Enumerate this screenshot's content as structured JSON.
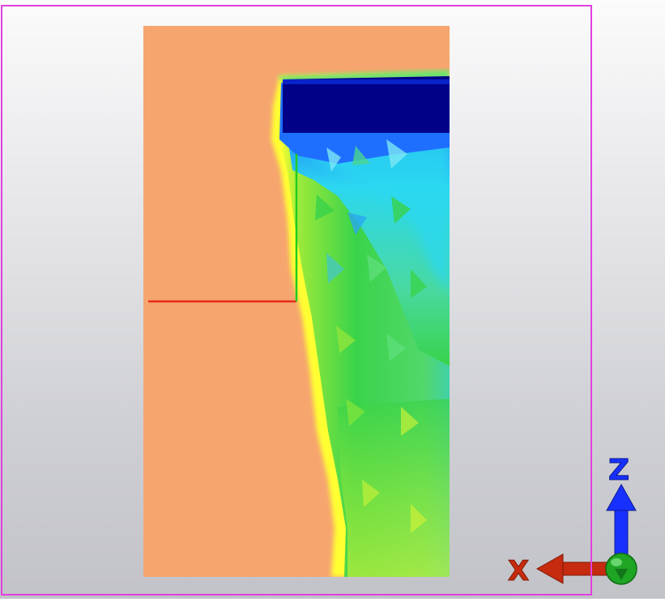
{
  "scene": {
    "frame_color": "#e040e0",
    "background_top": "#fbfbfb",
    "background_bottom": "#c2c3c8",
    "contour_colors": {
      "background": "#f7a46d",
      "dark_blue": "#000088",
      "blue": "#1f6fff",
      "cyan": "#2cd8f0",
      "green": "#39d34a",
      "yellow_green": "#b7ee3a",
      "yellow": "#ffff33"
    },
    "local_axes": {
      "x_color": "#e52a14",
      "z_color": "#20cc20"
    }
  },
  "triad": {
    "z_label": "Z",
    "x_label": "X",
    "z_color": "#1730ff",
    "x_color": "#c62a0f",
    "y_color": "#1ea524"
  }
}
